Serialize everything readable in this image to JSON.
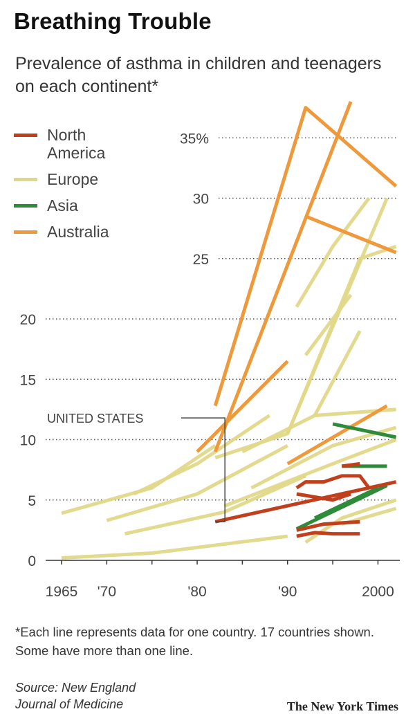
{
  "header": {
    "title": "Breathing Trouble",
    "subtitle": "Prevalence of asthma in children and teenagers on each continent*"
  },
  "legend": [
    {
      "label": "North America",
      "color": "#c0401e"
    },
    {
      "label": "Europe",
      "color": "#e0d888"
    },
    {
      "label": "Asia",
      "color": "#2e8b3a"
    },
    {
      "label": "Australia",
      "color": "#ee9a3c"
    }
  ],
  "footnote": "*Each line represents data for one country. 17 countries shown. Some have more than one line.",
  "source": {
    "line1": "Source: New England",
    "line2": "Journal of Medicine"
  },
  "credit": "The New York Times",
  "chart_data": {
    "type": "line",
    "title": "Breathing Trouble",
    "subtitle": "Prevalence of asthma in children and teenagers on each continent*",
    "xlabel": "",
    "ylabel": "",
    "xlim": [
      1965,
      2002
    ],
    "ylim": [
      0,
      38
    ],
    "x_ticks": [
      1965,
      1970,
      1980,
      1990,
      2000
    ],
    "x_tick_labels": [
      "1965",
      "'70",
      "'80",
      "'90",
      "2000"
    ],
    "y_ticks": [
      0,
      5,
      10,
      15,
      20,
      25,
      30,
      35
    ],
    "y_tick_labels": [
      "0",
      "5",
      "10",
      "15",
      "20",
      "25",
      "30",
      "35%"
    ],
    "grid": "horizontal dotted",
    "legend_position": "top-left",
    "annotation": {
      "text": "UNITED STATES",
      "x": 1982,
      "y": 3.2
    },
    "series": [
      {
        "region": "North America",
        "points": [
          [
            1982,
            3.2
          ],
          [
            2002,
            6.5
          ]
        ]
      },
      {
        "region": "North America",
        "points": [
          [
            1991,
            6
          ],
          [
            1992,
            6.5
          ],
          [
            1994,
            6.5
          ],
          [
            1996,
            7
          ],
          [
            1998,
            7
          ],
          [
            1999,
            6
          ]
        ]
      },
      {
        "region": "North America",
        "points": [
          [
            1991,
            5.5
          ],
          [
            1995,
            5
          ],
          [
            1997,
            5.5
          ]
        ]
      },
      {
        "region": "North America",
        "points": [
          [
            1991,
            2.5
          ],
          [
            1994,
            3
          ],
          [
            1998,
            3.2
          ]
        ]
      },
      {
        "region": "North America",
        "points": [
          [
            1991,
            2
          ],
          [
            1993,
            2.3
          ],
          [
            1995,
            2.2
          ],
          [
            1998,
            2.2
          ]
        ]
      },
      {
        "region": "North America",
        "points": [
          [
            1996,
            7.8
          ],
          [
            1998,
            8
          ]
        ]
      },
      {
        "region": "Europe",
        "points": [
          [
            1965,
            0.2
          ],
          [
            1975,
            0.6
          ],
          [
            1990,
            2
          ]
        ]
      },
      {
        "region": "Europe",
        "points": [
          [
            1965,
            3.9
          ],
          [
            1975,
            6
          ],
          [
            1982,
            9.5
          ]
        ]
      },
      {
        "region": "Europe",
        "points": [
          [
            1970,
            3.3
          ],
          [
            1980,
            5.5
          ],
          [
            1990,
            9.5
          ]
        ]
      },
      {
        "region": "Europe",
        "points": [
          [
            1972,
            2.2
          ],
          [
            1983,
            4
          ],
          [
            1992,
            7
          ]
        ]
      },
      {
        "region": "Europe",
        "points": [
          [
            1973,
            5.5
          ],
          [
            1980,
            8
          ],
          [
            1988,
            12
          ]
        ]
      },
      {
        "region": "Europe",
        "points": [
          [
            1982,
            8.5
          ],
          [
            1990,
            10.5
          ],
          [
            2001,
            30
          ]
        ]
      },
      {
        "region": "Europe",
        "points": [
          [
            1990,
            10.5
          ],
          [
            1998,
            25
          ],
          [
            2002,
            26
          ]
        ]
      },
      {
        "region": "Europe",
        "points": [
          [
            1991,
            21
          ],
          [
            1995,
            26
          ],
          [
            1999,
            30
          ]
        ]
      },
      {
        "region": "Europe",
        "points": [
          [
            1992,
            17
          ],
          [
            1997,
            22
          ]
        ]
      },
      {
        "region": "Europe",
        "points": [
          [
            1993,
            12
          ],
          [
            1998,
            19
          ]
        ]
      },
      {
        "region": "Europe",
        "points": [
          [
            1985,
            9
          ],
          [
            1993,
            12
          ],
          [
            2002,
            12.5
          ]
        ]
      },
      {
        "region": "Europe",
        "points": [
          [
            1983,
            4.5
          ],
          [
            1995,
            8
          ],
          [
            2002,
            10
          ]
        ]
      },
      {
        "region": "Europe",
        "points": [
          [
            1986,
            6
          ],
          [
            1995,
            9.5
          ],
          [
            2002,
            11
          ]
        ]
      },
      {
        "region": "Europe",
        "points": [
          [
            1992,
            1.5
          ],
          [
            1996,
            3.5
          ],
          [
            2002,
            5
          ]
        ]
      },
      {
        "region": "Europe",
        "points": [
          [
            1996,
            3
          ],
          [
            2002,
            4.3
          ]
        ]
      },
      {
        "region": "Asia",
        "points": [
          [
            1991,
            2.6
          ],
          [
            2001,
            6.2
          ]
        ]
      },
      {
        "region": "Asia",
        "points": [
          [
            1993,
            3.5
          ],
          [
            2000,
            6
          ]
        ]
      },
      {
        "region": "Asia",
        "points": [
          [
            1995,
            11.3
          ],
          [
            2002,
            10.2
          ]
        ]
      },
      {
        "region": "Asia",
        "points": [
          [
            1996,
            7.8
          ],
          [
            2001,
            7.8
          ]
        ]
      },
      {
        "region": "Australia",
        "points": [
          [
            1982,
            12.8
          ],
          [
            1992,
            37.5
          ],
          [
            2002,
            31
          ]
        ]
      },
      {
        "region": "Australia",
        "points": [
          [
            1982,
            9
          ],
          [
            1997,
            38
          ]
        ]
      },
      {
        "region": "Australia",
        "points": [
          [
            1980,
            9
          ],
          [
            1990,
            16.5
          ]
        ]
      },
      {
        "region": "Australia",
        "points": [
          [
            1992,
            28.5
          ],
          [
            2002,
            25.5
          ]
        ]
      },
      {
        "region": "Australia",
        "points": [
          [
            1990,
            8
          ],
          [
            2001,
            12.8
          ]
        ]
      }
    ]
  }
}
